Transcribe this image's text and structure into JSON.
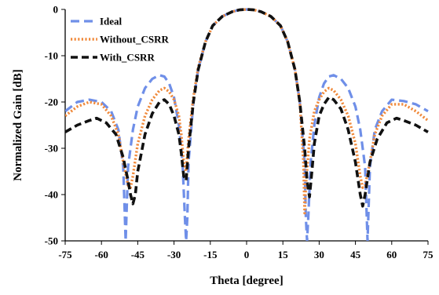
{
  "chart_data": {
    "type": "line",
    "xlabel": "Theta [degree]",
    "ylabel": "Normalized Gain [dB]",
    "xlim": [
      -75,
      75
    ],
    "ylim": [
      -50,
      0
    ],
    "xticks": [
      "-75",
      "-60",
      "-45",
      "-30",
      "-15",
      "0",
      "15",
      "30",
      "45",
      "60",
      "75"
    ],
    "yticks": [
      "0",
      "-10",
      "-20",
      "-30",
      "-40",
      "-50"
    ],
    "grid": false,
    "legend_position": "top-left",
    "series": [
      {
        "name": "Ideal",
        "color": "#6f8fe8",
        "style": "long-dash",
        "x": [
          -75,
          -70,
          -65,
          -60,
          -56,
          -53,
          -51,
          -50,
          -49,
          -47,
          -45,
          -42,
          -39,
          -36,
          -34,
          -32,
          -30,
          -28,
          -26.5,
          -25.5,
          -25,
          -24.5,
          -24,
          -22,
          -20,
          -17,
          -14,
          -10,
          -6,
          -3,
          0,
          3,
          6,
          10,
          14,
          17,
          20,
          22,
          24,
          24.5,
          25,
          25.5,
          26.5,
          28,
          30,
          32,
          34,
          36,
          39,
          42,
          45,
          47,
          49,
          50,
          51,
          53,
          56,
          60,
          65,
          70,
          75
        ],
        "y": [
          -22,
          -20,
          -19.5,
          -20,
          -22,
          -26,
          -34,
          -50,
          -34,
          -26,
          -21,
          -17,
          -15,
          -14.2,
          -14.5,
          -16,
          -19,
          -25,
          -33,
          -45,
          -50,
          -45,
          -33,
          -20,
          -13,
          -7,
          -3.5,
          -1.5,
          -0.5,
          -0.1,
          0,
          -0.1,
          -0.5,
          -1.5,
          -3.5,
          -7,
          -13,
          -20,
          -33,
          -45,
          -50,
          -45,
          -33,
          -25,
          -19,
          -16,
          -14.5,
          -14.2,
          -15,
          -17,
          -21,
          -26,
          -34,
          -50,
          -34,
          -26,
          -22,
          -19.5,
          -19.8,
          -20.5,
          -22
        ]
      },
      {
        "name": "Without_CSRR",
        "color": "#f08a3c",
        "style": "dotted",
        "x": [
          -75,
          -70,
          -65,
          -60,
          -56,
          -53,
          -51,
          -49,
          -48,
          -47,
          -45,
          -42,
          -39,
          -36,
          -34,
          -32,
          -30,
          -28,
          -27,
          -26,
          -25,
          -24,
          -22,
          -20,
          -17,
          -14,
          -10,
          -6,
          -3,
          0,
          3,
          6,
          10,
          14,
          17,
          20,
          22,
          23.5,
          24,
          24.5,
          26,
          28,
          30,
          32,
          34,
          36,
          39,
          42,
          45,
          47,
          48,
          49,
          51,
          53,
          56,
          60,
          65,
          70,
          75
        ],
        "y": [
          -23,
          -21,
          -20,
          -20.5,
          -23,
          -27,
          -33,
          -38,
          -38.5,
          -36,
          -29,
          -23,
          -19.5,
          -17.5,
          -17,
          -17.8,
          -19.5,
          -23,
          -27,
          -33,
          -35,
          -28,
          -19,
          -12.5,
          -7,
          -3.5,
          -1.5,
          -0.5,
          -0.1,
          0,
          -0.1,
          -0.5,
          -1.5,
          -3.5,
          -7,
          -13,
          -20,
          -33,
          -44,
          -38,
          -28,
          -22,
          -19.5,
          -17.8,
          -17,
          -17.5,
          -19.5,
          -23,
          -29,
          -36,
          -38.5,
          -38,
          -33,
          -27,
          -23,
          -20.5,
          -20.5,
          -22,
          -24
        ]
      },
      {
        "name": "With_CSRR",
        "color": "#111111",
        "style": "dashed",
        "x": [
          -75,
          -70,
          -65,
          -62,
          -58,
          -54,
          -51,
          -49,
          -48,
          -47,
          -46,
          -45,
          -42,
          -39,
          -36,
          -34,
          -32,
          -30,
          -28,
          -27,
          -26,
          -25,
          -24,
          -22,
          -20,
          -17,
          -14,
          -10,
          -6,
          -3,
          0,
          3,
          6,
          10,
          14,
          17,
          20,
          22,
          24,
          25,
          26,
          27,
          28,
          30,
          32,
          34,
          36,
          39,
          42,
          45,
          47,
          48,
          49,
          51,
          54,
          58,
          62,
          65,
          70,
          75
        ],
        "y": [
          -26.5,
          -25,
          -24,
          -23.5,
          -24.5,
          -27,
          -32,
          -37,
          -40,
          -42,
          -40,
          -35,
          -27,
          -22.5,
          -20,
          -19.5,
          -20.5,
          -23,
          -27,
          -31,
          -36,
          -37,
          -30,
          -20,
          -13,
          -7,
          -3.5,
          -1.5,
          -0.5,
          -0.1,
          0,
          -0.1,
          -0.5,
          -1.5,
          -3.5,
          -7,
          -13,
          -20,
          -30,
          -37,
          -40.5,
          -35,
          -29,
          -23,
          -20.5,
          -19,
          -19.5,
          -21.5,
          -26,
          -33,
          -40,
          -42.5,
          -40,
          -33,
          -28,
          -24.5,
          -23.5,
          -24,
          -25,
          -26.5
        ]
      }
    ]
  }
}
